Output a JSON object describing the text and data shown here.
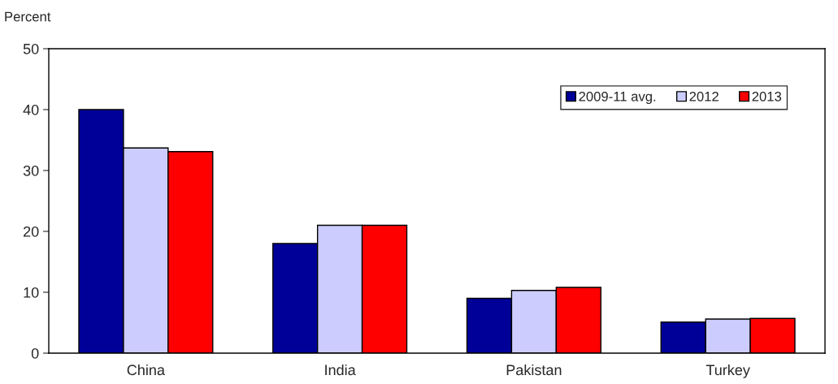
{
  "chart_data": {
    "type": "bar",
    "ylabel": "Percent",
    "categories": [
      "China",
      "India",
      "Pakistan",
      "Turkey"
    ],
    "series": [
      {
        "name": "2009-11 avg.",
        "color": "#000099",
        "values": [
          40,
          18,
          9,
          5.1
        ]
      },
      {
        "name": "2012",
        "color": "#ccccff",
        "values": [
          33.7,
          21,
          10.3,
          5.6
        ]
      },
      {
        "name": "2013",
        "color": "#ff0000",
        "values": [
          33.1,
          21,
          10.8,
          5.7
        ]
      }
    ],
    "ylim": [
      0,
      50
    ],
    "yticks": [
      0,
      10,
      20,
      30,
      40,
      50
    ],
    "grid": false,
    "legend": "top right"
  }
}
